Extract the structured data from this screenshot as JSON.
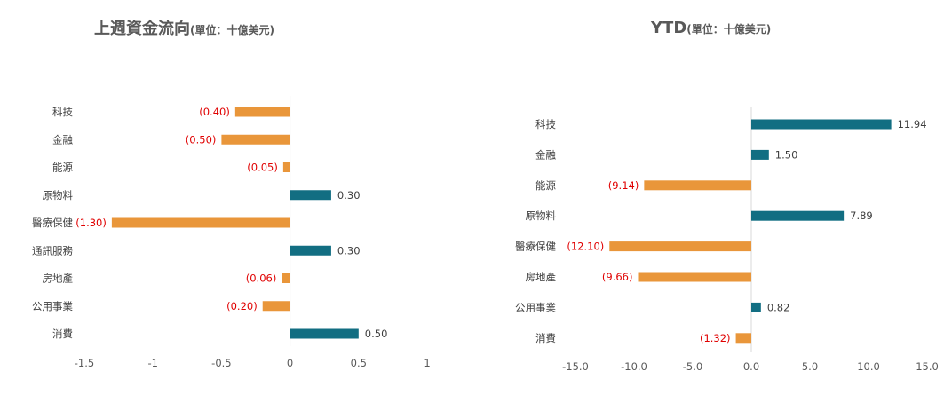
{
  "colors": {
    "positive": "#126E82",
    "negative": "#E9963A",
    "positive_label": "#404040",
    "negative_label": "#E00000",
    "axis": "#D9D9D9"
  },
  "chart_data": [
    {
      "type": "bar",
      "orientation": "horizontal",
      "title": "上週資金流向",
      "subtitle": "(單位：十億美元)",
      "categories": [
        "科技",
        "金融",
        "能源",
        "原物料",
        "醫療保健",
        "通訊服務",
        "房地產",
        "公用事業",
        "消費"
      ],
      "values": [
        -0.4,
        -0.5,
        -0.05,
        0.3,
        -1.3,
        0.3,
        -0.06,
        -0.2,
        0.5
      ],
      "value_labels": [
        "(0.40)",
        "(0.50)",
        "(0.05)",
        "0.30",
        "(1.30)",
        "0.30",
        "(0.06)",
        "(0.20)",
        "0.50"
      ],
      "xlim": [
        -1.5,
        1
      ],
      "x_ticks": [
        -1.5,
        -1,
        -0.5,
        0,
        0.5,
        1
      ],
      "x_tick_labels": [
        "-1.5",
        "-1",
        "-0.5",
        "0",
        "0.5",
        "1"
      ],
      "grid": false
    },
    {
      "type": "bar",
      "orientation": "horizontal",
      "title": "YTD",
      "subtitle": "(單位：十億美元)",
      "categories": [
        "科技",
        "金融",
        "能源",
        "原物料",
        "醫療保健",
        "房地產",
        "公用事業",
        "消費"
      ],
      "values": [
        11.94,
        1.5,
        -9.14,
        7.89,
        -12.1,
        -9.66,
        0.82,
        -1.32
      ],
      "value_labels": [
        "11.94",
        "1.50",
        "(9.14)",
        "7.89",
        "(12.10)",
        "(9.66)",
        "0.82",
        "(1.32)"
      ],
      "xlim": [
        -15,
        15
      ],
      "x_ticks": [
        -15,
        -10,
        -5,
        0,
        5,
        10,
        15
      ],
      "x_tick_labels": [
        "-15.0",
        "-10.0",
        "-5.0",
        "0.0",
        "5.0",
        "10.0",
        "15.0"
      ],
      "grid": false
    }
  ]
}
